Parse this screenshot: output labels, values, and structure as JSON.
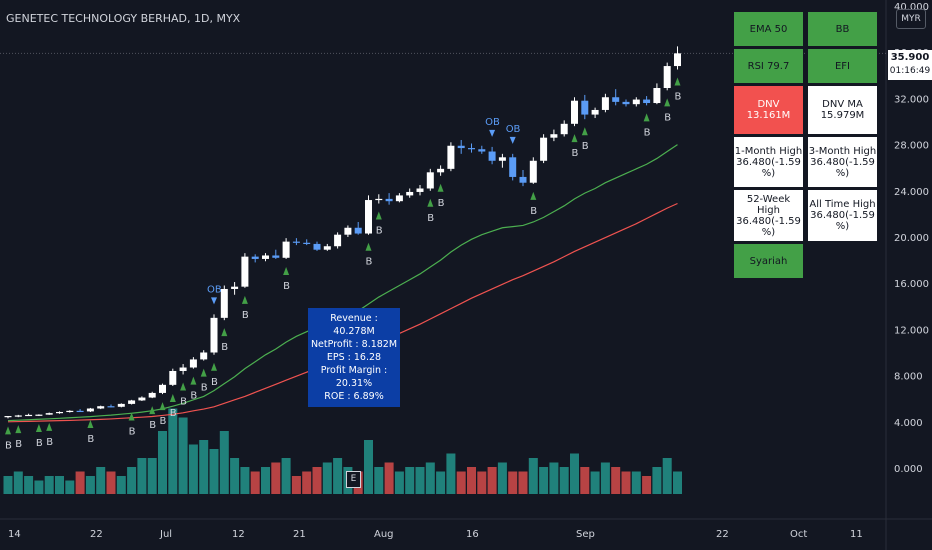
{
  "header": {
    "title": "GENETEC TECHNOLOGY BERHAD, 1D, MYX",
    "currency": "MYR"
  },
  "last_price": {
    "price": "35.900",
    "countdown": "01:16:49"
  },
  "indicator_panel": {
    "ema50": "EMA 50",
    "bb": "BB",
    "rsi": "RSI 79.7",
    "efi": "EFI",
    "dnv_label": "DNV",
    "dnv_value": "13.161M",
    "dnv_ma_label": "DNV MA",
    "dnv_ma_value": "15.979M",
    "m1_label": "1-Month High",
    "m1_value": "36.480(-1.59 %)",
    "m3_label": "3-Month High",
    "m3_value": "36.480(-1.59 %)",
    "w52_label": "52-Week High",
    "w52_value": "36.480(-1.59 %)",
    "ath_label": "All Time High",
    "ath_value": "36.480(-1.59 %)",
    "syariah": "Syariah",
    "colors": {
      "green": "#43a047",
      "red": "#f2514f",
      "white": "#ffffff"
    }
  },
  "financials": {
    "revenue": "Revenue : 40.278M",
    "net_profit": "NetProfit : 8.182M",
    "eps": "EPS : 16.28",
    "profit_margin": "Profit Margin : 20.31%",
    "roe": "ROE : 6.89%"
  },
  "earnings_marker": "E",
  "chart_data": {
    "type": "candlestick",
    "title": "GENETEC TECHNOLOGY BERHAD, 1D, MYX",
    "y_ticks": [
      "0.000",
      "4.000",
      "8.000",
      "12.000",
      "16.000",
      "20.000",
      "24.000",
      "28.000",
      "32.000",
      "36.000",
      "40.000"
    ],
    "x_ticks": [
      "14",
      "22",
      "Jul",
      "12",
      "21",
      "Aug",
      "16",
      "Sep",
      "22",
      "Oct",
      "11"
    ],
    "ylim": [
      -2,
      40
    ],
    "colors": {
      "up": "#ffffff",
      "down": "#5b9cf6",
      "ema_fast": "#4caf50",
      "ema_slow": "#ef5350",
      "vol_up": "#26a69a",
      "vol_down": "#ef5350",
      "signal_b": "#43a047",
      "signal_ob": "#5b9cf6"
    },
    "candles": [
      [
        4.4,
        4.5,
        4.3,
        4.5
      ],
      [
        4.5,
        4.6,
        4.4,
        4.55
      ],
      [
        4.55,
        4.7,
        4.5,
        4.6
      ],
      [
        4.6,
        4.65,
        4.5,
        4.62
      ],
      [
        4.62,
        4.8,
        4.6,
        4.75
      ],
      [
        4.75,
        4.9,
        4.7,
        4.85
      ],
      [
        4.85,
        5.0,
        4.8,
        4.95
      ],
      [
        4.95,
        5.1,
        4.85,
        4.9
      ],
      [
        4.9,
        5.2,
        4.85,
        5.15
      ],
      [
        5.15,
        5.4,
        5.1,
        5.35
      ],
      [
        5.35,
        5.5,
        5.25,
        5.3
      ],
      [
        5.3,
        5.6,
        5.25,
        5.55
      ],
      [
        5.55,
        5.9,
        5.5,
        5.85
      ],
      [
        5.85,
        6.2,
        5.8,
        6.1
      ],
      [
        6.1,
        6.6,
        6.05,
        6.5
      ],
      [
        6.5,
        7.3,
        6.4,
        7.2
      ],
      [
        7.2,
        8.6,
        7.1,
        8.4
      ],
      [
        8.4,
        9.0,
        8.1,
        8.7
      ],
      [
        8.7,
        9.6,
        8.6,
        9.4
      ],
      [
        9.4,
        10.2,
        9.3,
        10.0
      ],
      [
        10.0,
        13.3,
        9.8,
        13.0
      ],
      [
        13.0,
        15.8,
        12.8,
        15.5
      ],
      [
        15.5,
        16.1,
        15.0,
        15.7
      ],
      [
        15.7,
        18.6,
        15.6,
        18.3
      ],
      [
        18.3,
        18.5,
        17.8,
        18.1
      ],
      [
        18.1,
        18.6,
        17.9,
        18.4
      ],
      [
        18.4,
        18.9,
        18.1,
        18.2
      ],
      [
        18.2,
        19.9,
        18.1,
        19.6
      ],
      [
        19.6,
        19.9,
        19.3,
        19.5
      ],
      [
        19.5,
        19.8,
        19.3,
        19.4
      ],
      [
        19.4,
        19.6,
        18.8,
        18.9
      ],
      [
        18.9,
        19.4,
        18.8,
        19.2
      ],
      [
        19.2,
        20.4,
        19.0,
        20.2
      ],
      [
        20.2,
        21.0,
        20.0,
        20.8
      ],
      [
        20.8,
        21.3,
        20.2,
        20.3
      ],
      [
        20.3,
        23.6,
        20.2,
        23.2
      ],
      [
        23.2,
        23.7,
        22.9,
        23.3
      ],
      [
        23.3,
        23.8,
        22.8,
        23.1
      ],
      [
        23.1,
        23.8,
        23.0,
        23.6
      ],
      [
        23.6,
        24.2,
        23.4,
        23.9
      ],
      [
        23.9,
        24.5,
        23.6,
        24.2
      ],
      [
        24.2,
        25.9,
        24.0,
        25.6
      ],
      [
        25.6,
        26.2,
        25.3,
        25.9
      ],
      [
        25.9,
        28.2,
        25.7,
        27.9
      ],
      [
        27.9,
        28.4,
        27.2,
        27.7
      ],
      [
        27.7,
        28.1,
        27.3,
        27.6
      ],
      [
        27.6,
        27.9,
        27.2,
        27.4
      ],
      [
        27.4,
        27.8,
        26.3,
        26.6
      ],
      [
        26.6,
        27.2,
        26.0,
        26.9
      ],
      [
        26.9,
        27.2,
        24.9,
        25.2
      ],
      [
        25.2,
        25.8,
        24.4,
        24.7
      ],
      [
        24.7,
        26.9,
        24.6,
        26.6
      ],
      [
        26.6,
        28.9,
        26.4,
        28.6
      ],
      [
        28.6,
        29.3,
        28.3,
        28.9
      ],
      [
        28.9,
        30.1,
        28.7,
        29.8
      ],
      [
        29.8,
        32.1,
        29.6,
        31.8
      ],
      [
        31.8,
        32.3,
        30.2,
        30.6
      ],
      [
        30.6,
        31.2,
        30.3,
        31.0
      ],
      [
        31.0,
        32.4,
        30.8,
        32.1
      ],
      [
        32.1,
        32.8,
        31.4,
        31.7
      ],
      [
        31.7,
        31.9,
        31.3,
        31.5
      ],
      [
        31.5,
        32.1,
        31.3,
        31.9
      ],
      [
        31.9,
        32.2,
        31.4,
        31.6
      ],
      [
        31.6,
        33.3,
        31.5,
        32.9
      ],
      [
        32.9,
        35.1,
        32.7,
        34.8
      ],
      [
        34.8,
        36.5,
        34.5,
        35.9
      ]
    ],
    "ema50": [
      4.1,
      4.14,
      4.18,
      4.22,
      4.26,
      4.3,
      4.35,
      4.4,
      4.45,
      4.52,
      4.58,
      4.66,
      4.74,
      4.84,
      4.96,
      5.12,
      5.35,
      5.6,
      5.9,
      6.2,
      6.7,
      7.3,
      7.9,
      8.6,
      9.2,
      9.8,
      10.3,
      10.9,
      11.4,
      11.8,
      12.2,
      12.5,
      12.9,
      13.3,
      13.6,
      14.2,
      14.8,
      15.3,
      15.8,
      16.3,
      16.8,
      17.4,
      18.0,
      18.7,
      19.3,
      19.8,
      20.2,
      20.5,
      20.8,
      20.9,
      21.0,
      21.3,
      21.7,
      22.2,
      22.7,
      23.3,
      23.8,
      24.2,
      24.7,
      25.1,
      25.5,
      25.9,
      26.3,
      26.8,
      27.4,
      28.0
    ],
    "ema200": [
      4.0,
      4.02,
      4.04,
      4.06,
      4.08,
      4.1,
      4.12,
      4.15,
      4.18,
      4.21,
      4.25,
      4.3,
      4.35,
      4.4,
      4.46,
      4.55,
      4.65,
      4.78,
      4.95,
      5.1,
      5.3,
      5.6,
      5.9,
      6.2,
      6.55,
      6.9,
      7.25,
      7.6,
      7.95,
      8.3,
      8.65,
      9.0,
      9.35,
      9.7,
      10.05,
      10.45,
      10.85,
      11.25,
      11.65,
      12.05,
      12.45,
      12.9,
      13.35,
      13.8,
      14.25,
      14.7,
      15.1,
      15.5,
      15.9,
      16.3,
      16.65,
      17.05,
      17.45,
      17.85,
      18.3,
      18.75,
      19.15,
      19.55,
      19.95,
      20.35,
      20.75,
      21.15,
      21.6,
      22.05,
      22.5,
      22.9
    ],
    "volume": [
      4,
      5,
      4,
      3,
      4,
      4,
      3,
      5,
      4,
      6,
      5,
      4,
      6,
      8,
      8,
      14,
      19,
      17,
      11,
      12,
      10,
      14,
      8,
      6,
      5,
      6,
      7,
      8,
      4,
      5,
      6,
      7,
      8,
      6,
      5,
      12,
      6,
      7,
      5,
      6,
      6,
      7,
      5,
      9,
      5,
      6,
      5,
      6,
      7,
      5,
      5,
      8,
      6,
      7,
      6,
      9,
      6,
      5,
      7,
      6,
      5,
      5,
      4,
      6,
      8,
      5
    ],
    "b_signals": [
      [
        0,
        "above"
      ],
      [
        1,
        "above"
      ],
      [
        3,
        "above"
      ],
      [
        4,
        "above"
      ],
      [
        8,
        "above"
      ],
      [
        12,
        "above"
      ],
      [
        14,
        "above"
      ],
      [
        15,
        "above"
      ],
      [
        16,
        "above"
      ],
      [
        17,
        "above"
      ],
      [
        18,
        "above"
      ],
      [
        19,
        "above"
      ],
      [
        20,
        "above"
      ],
      [
        21,
        "above"
      ],
      [
        23,
        "above"
      ],
      [
        27,
        "above"
      ],
      [
        35,
        "below"
      ],
      [
        36,
        "above"
      ],
      [
        41,
        "above"
      ],
      [
        42,
        "above"
      ],
      [
        51,
        "above"
      ],
      [
        55,
        "above"
      ],
      [
        56,
        "above"
      ],
      [
        62,
        "above"
      ],
      [
        64,
        "above"
      ],
      [
        65,
        "above"
      ]
    ],
    "ob_signals": [
      20,
      47,
      49
    ]
  }
}
